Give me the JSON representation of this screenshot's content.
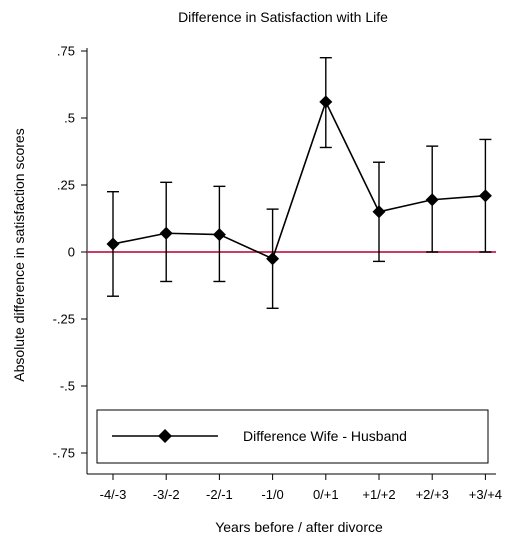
{
  "chart_data": {
    "type": "line",
    "title": "Difference in Satisfaction with Life",
    "xlabel": "Years before / after divorce",
    "ylabel": "Absolute difference in satisfaction scores",
    "categories": [
      "-4/-3",
      "-3/-2",
      "-2/-1",
      "-1/0",
      "0/+1",
      "+1/+2",
      "+2/+3",
      "+3/+4"
    ],
    "ylim": [
      -0.8,
      0.8
    ],
    "yticks": [
      0.75,
      0.5,
      0.25,
      0,
      -0.25,
      -0.5,
      -0.75
    ],
    "ytick_labels": [
      ".75",
      ".5",
      ".25",
      "0",
      "-.25",
      "-.5",
      "-.75"
    ],
    "series": [
      {
        "name": "Difference Wife - Husband",
        "values": [
          0.03,
          0.07,
          0.065,
          -0.025,
          0.56,
          0.15,
          0.195,
          0.21
        ],
        "ci_upper": [
          0.225,
          0.26,
          0.245,
          0.16,
          0.725,
          0.335,
          0.395,
          0.42
        ],
        "ci_lower": [
          -0.165,
          -0.11,
          -0.11,
          -0.21,
          0.39,
          -0.035,
          0.0,
          0.0
        ]
      }
    ],
    "reference_line": {
      "y": 0,
      "color": "#c0224f"
    },
    "line_color": "#000000",
    "legend_position": "bottom-left",
    "grid": false
  }
}
